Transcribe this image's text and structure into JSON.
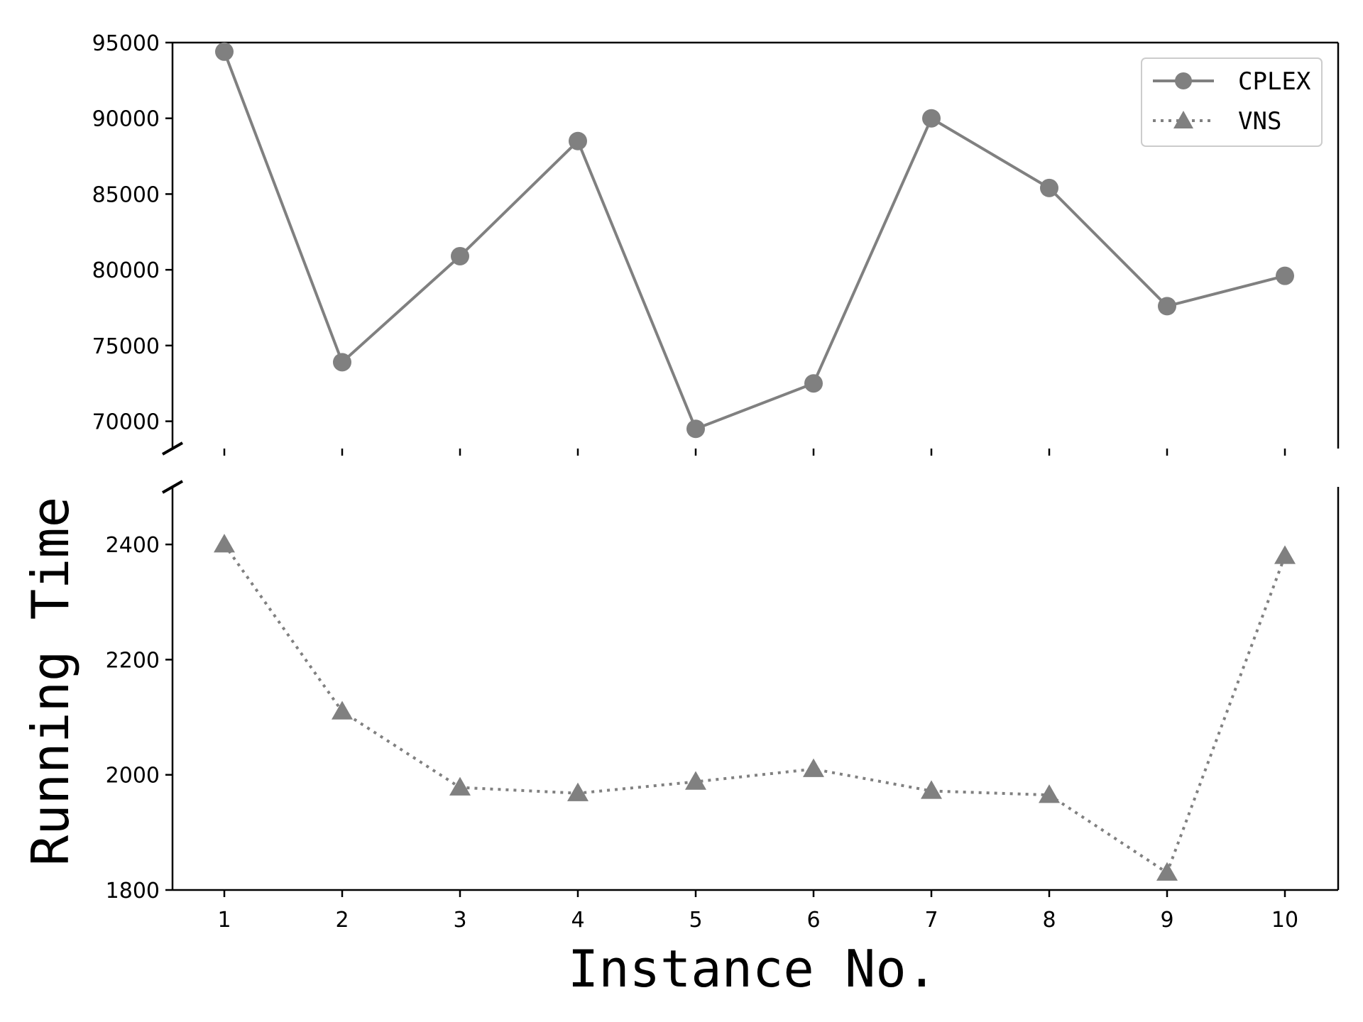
{
  "chart_data": {
    "type": "line",
    "xlabel": "Instance No.",
    "ylabel": "Running Time",
    "categories": [
      1,
      2,
      3,
      4,
      5,
      6,
      7,
      8,
      9,
      10
    ],
    "x_tick_labels": [
      "1",
      "2",
      "3",
      "4",
      "5",
      "6",
      "7",
      "8",
      "9",
      "10"
    ],
    "broken_y_axis": true,
    "upper_panel": {
      "ylim": [
        68200,
        95000
      ],
      "y_ticks": [
        70000,
        75000,
        80000,
        85000,
        90000,
        95000
      ],
      "y_tick_labels": [
        "70000",
        "75000",
        "80000",
        "85000",
        "90000",
        "95000"
      ],
      "series": [
        "CPLEX"
      ]
    },
    "lower_panel": {
      "ylim": [
        1800,
        2500
      ],
      "y_ticks": [
        1800,
        2000,
        2200,
        2400
      ],
      "y_tick_labels": [
        "1800",
        "2000",
        "2200",
        "2400"
      ],
      "series": [
        "VNS"
      ]
    },
    "series": [
      {
        "name": "CPLEX",
        "values": [
          94400,
          73900,
          80900,
          88500,
          69500,
          72500,
          90000,
          85400,
          77600,
          79600
        ],
        "color": "#808080",
        "line_style": "solid",
        "marker": "circle"
      },
      {
        "name": "VNS",
        "values": [
          2400,
          2110,
          1978,
          1968,
          1988,
          2010,
          1972,
          1965,
          1830,
          2380
        ],
        "color": "#808080",
        "line_style": "dotted",
        "marker": "triangle"
      }
    ],
    "legend": {
      "position": "top-right",
      "entries": [
        "CPLEX",
        "VNS"
      ]
    },
    "grid": false
  }
}
